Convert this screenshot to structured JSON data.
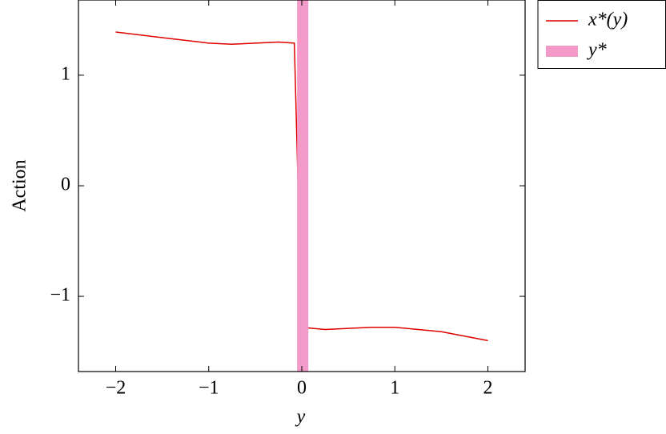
{
  "chart_data": {
    "type": "line",
    "xlabel": "y",
    "ylabel": "Action",
    "xlim": [
      -2.4,
      2.4
    ],
    "ylim": [
      -1.68,
      1.68
    ],
    "xticks": [
      {
        "value": -2,
        "label": "−2"
      },
      {
        "value": -1,
        "label": "−1"
      },
      0,
      1,
      2
    ],
    "yticks": [
      {
        "value": -1,
        "label": "−1"
      },
      0,
      1
    ],
    "legend": "outside-top-right",
    "series": [
      {
        "name": "x*(y)",
        "color": "#e00000",
        "x": [
          -2,
          -1.5,
          -1,
          -0.75,
          -0.5,
          -0.25,
          -0.08,
          0,
          0.25,
          0.5,
          0.75,
          1,
          1.5,
          2
        ],
        "values": [
          1.39,
          1.34,
          1.29,
          1.28,
          1.29,
          1.3,
          1.29,
          -1.28,
          -1.3,
          -1.29,
          -1.28,
          -1.28,
          -1.32,
          -1.4
        ]
      },
      {
        "name": "y*",
        "color": "#f49ac9",
        "type": "vband",
        "x": [
          0.01
        ]
      }
    ]
  }
}
